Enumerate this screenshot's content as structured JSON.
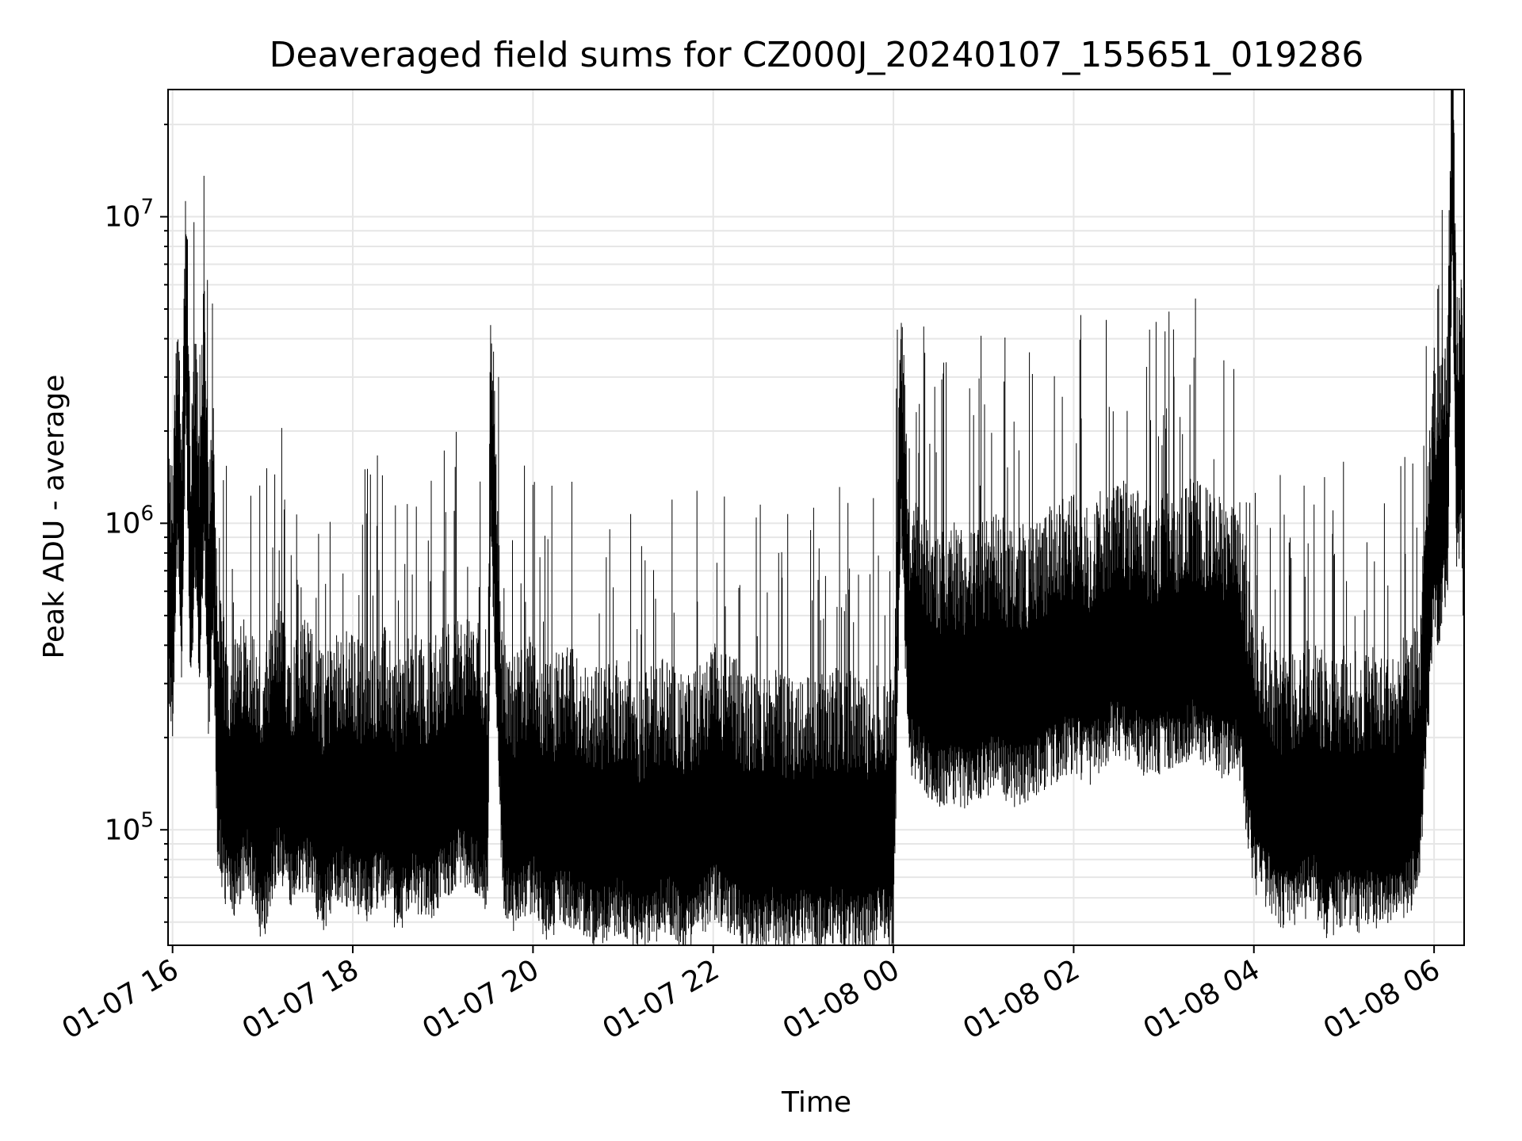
{
  "chart_data": {
    "type": "line",
    "title": "Deaveraged field sums for CZ000J_20240107_155651_019286",
    "xlabel": "Time",
    "ylabel": "Peak ADU - average",
    "x_range": [
      "2024-01-07 15:57",
      "2024-01-08 06:20"
    ],
    "ylim": [
      42000,
      26000000
    ],
    "y_scale": "log",
    "grid": true,
    "x_ticks": [
      {
        "value": "2024-01-07 16:00",
        "label": "01-07 16"
      },
      {
        "value": "2024-01-07 18:00",
        "label": "01-07 18"
      },
      {
        "value": "2024-01-07 20:00",
        "label": "01-07 20"
      },
      {
        "value": "2024-01-07 22:00",
        "label": "01-07 22"
      },
      {
        "value": "2024-01-08 00:00",
        "label": "01-08 00"
      },
      {
        "value": "2024-01-08 02:00",
        "label": "01-08 02"
      },
      {
        "value": "2024-01-08 04:00",
        "label": "01-08 04"
      },
      {
        "value": "2024-01-08 06:00",
        "label": "01-08 06"
      }
    ],
    "y_ticks": [
      {
        "value": 100000,
        "base": "10",
        "exp": "5"
      },
      {
        "value": 1000000,
        "base": "10",
        "exp": "6"
      },
      {
        "value": 10000000,
        "base": "10",
        "exp": "7"
      }
    ],
    "line_color": "#000000",
    "grid_color": "#e6e6e6",
    "series": [
      {
        "x": [
          "2024-01-07 15:57",
          "2024-01-07 16:00",
          "2024-01-07 16:03",
          "2024-01-07 16:06",
          "2024-01-07 16:09",
          "2024-01-07 16:12",
          "2024-01-07 16:15",
          "2024-01-07 16:18",
          "2024-01-07 16:21",
          "2024-01-07 16:24",
          "2024-01-07 16:27",
          "2024-01-07 16:30",
          "2024-01-07 16:35",
          "2024-01-07 16:40",
          "2024-01-07 16:50",
          "2024-01-07 17:00",
          "2024-01-07 17:10",
          "2024-01-07 17:20",
          "2024-01-07 17:30",
          "2024-01-07 17:40",
          "2024-01-07 17:50",
          "2024-01-07 18:00",
          "2024-01-07 18:10",
          "2024-01-07 18:20",
          "2024-01-07 18:30",
          "2024-01-07 18:40",
          "2024-01-07 18:50",
          "2024-01-07 19:00",
          "2024-01-07 19:10",
          "2024-01-07 19:20",
          "2024-01-07 19:30",
          "2024-01-07 19:32",
          "2024-01-07 19:40",
          "2024-01-07 19:50",
          "2024-01-07 20:00",
          "2024-01-07 20:10",
          "2024-01-07 20:20",
          "2024-01-07 20:30",
          "2024-01-07 20:40",
          "2024-01-07 20:50",
          "2024-01-07 21:00",
          "2024-01-07 21:10",
          "2024-01-07 21:20",
          "2024-01-07 21:30",
          "2024-01-07 21:40",
          "2024-01-07 21:50",
          "2024-01-07 22:00",
          "2024-01-07 22:10",
          "2024-01-07 22:20",
          "2024-01-07 22:30",
          "2024-01-07 22:40",
          "2024-01-07 22:50",
          "2024-01-07 23:00",
          "2024-01-07 23:10",
          "2024-01-07 23:20",
          "2024-01-07 23:30",
          "2024-01-07 23:40",
          "2024-01-07 23:50",
          "2024-01-08 00:00",
          "2024-01-08 00:05",
          "2024-01-08 00:10",
          "2024-01-08 00:20",
          "2024-01-08 00:30",
          "2024-01-08 00:40",
          "2024-01-08 00:50",
          "2024-01-08 01:00",
          "2024-01-08 01:10",
          "2024-01-08 01:20",
          "2024-01-08 01:30",
          "2024-01-08 01:40",
          "2024-01-08 01:50",
          "2024-01-08 02:00",
          "2024-01-08 02:10",
          "2024-01-08 02:20",
          "2024-01-08 02:30",
          "2024-01-08 02:40",
          "2024-01-08 02:50",
          "2024-01-08 03:00",
          "2024-01-08 03:10",
          "2024-01-08 03:20",
          "2024-01-08 03:30",
          "2024-01-08 03:40",
          "2024-01-08 03:50",
          "2024-01-08 04:00",
          "2024-01-08 04:10",
          "2024-01-08 04:20",
          "2024-01-08 04:30",
          "2024-01-08 04:40",
          "2024-01-08 04:50",
          "2024-01-08 05:00",
          "2024-01-08 05:10",
          "2024-01-08 05:20",
          "2024-01-08 05:30",
          "2024-01-08 05:40",
          "2024-01-08 05:50",
          "2024-01-08 06:00",
          "2024-01-08 06:03",
          "2024-01-08 06:06",
          "2024-01-08 06:09",
          "2024-01-08 06:12",
          "2024-01-08 06:15",
          "2024-01-08 06:18",
          "2024-01-08 06:20"
        ],
        "y": [
          700000,
          500000,
          2000000,
          800000,
          5300000,
          600000,
          1500000,
          700000,
          2200000,
          500000,
          1000000,
          200000,
          150000,
          130000,
          170000,
          110000,
          180000,
          140000,
          160000,
          120000,
          150000,
          140000,
          130000,
          150000,
          120000,
          140000,
          130000,
          150000,
          170000,
          160000,
          140000,
          2200000,
          130000,
          120000,
          140000,
          110000,
          130000,
          120000,
          110000,
          110000,
          120000,
          100000,
          110000,
          120000,
          100000,
          110000,
          130000,
          120000,
          110000,
          100000,
          110000,
          100000,
          110000,
          100000,
          110000,
          105000,
          100000,
          110000,
          100000,
          2500000,
          400000,
          350000,
          300000,
          320000,
          300000,
          330000,
          340000,
          310000,
          320000,
          350000,
          380000,
          400000,
          360000,
          420000,
          450000,
          420000,
          380000,
          400000,
          420000,
          450000,
          410000,
          380000,
          400000,
          160000,
          140000,
          120000,
          130000,
          140000,
          110000,
          130000,
          120000,
          125000,
          120000,
          135000,
          150000,
          1200000,
          1000000,
          1300000,
          1500000,
          18000000,
          1800000,
          2200000,
          900000
        ]
      }
    ]
  }
}
